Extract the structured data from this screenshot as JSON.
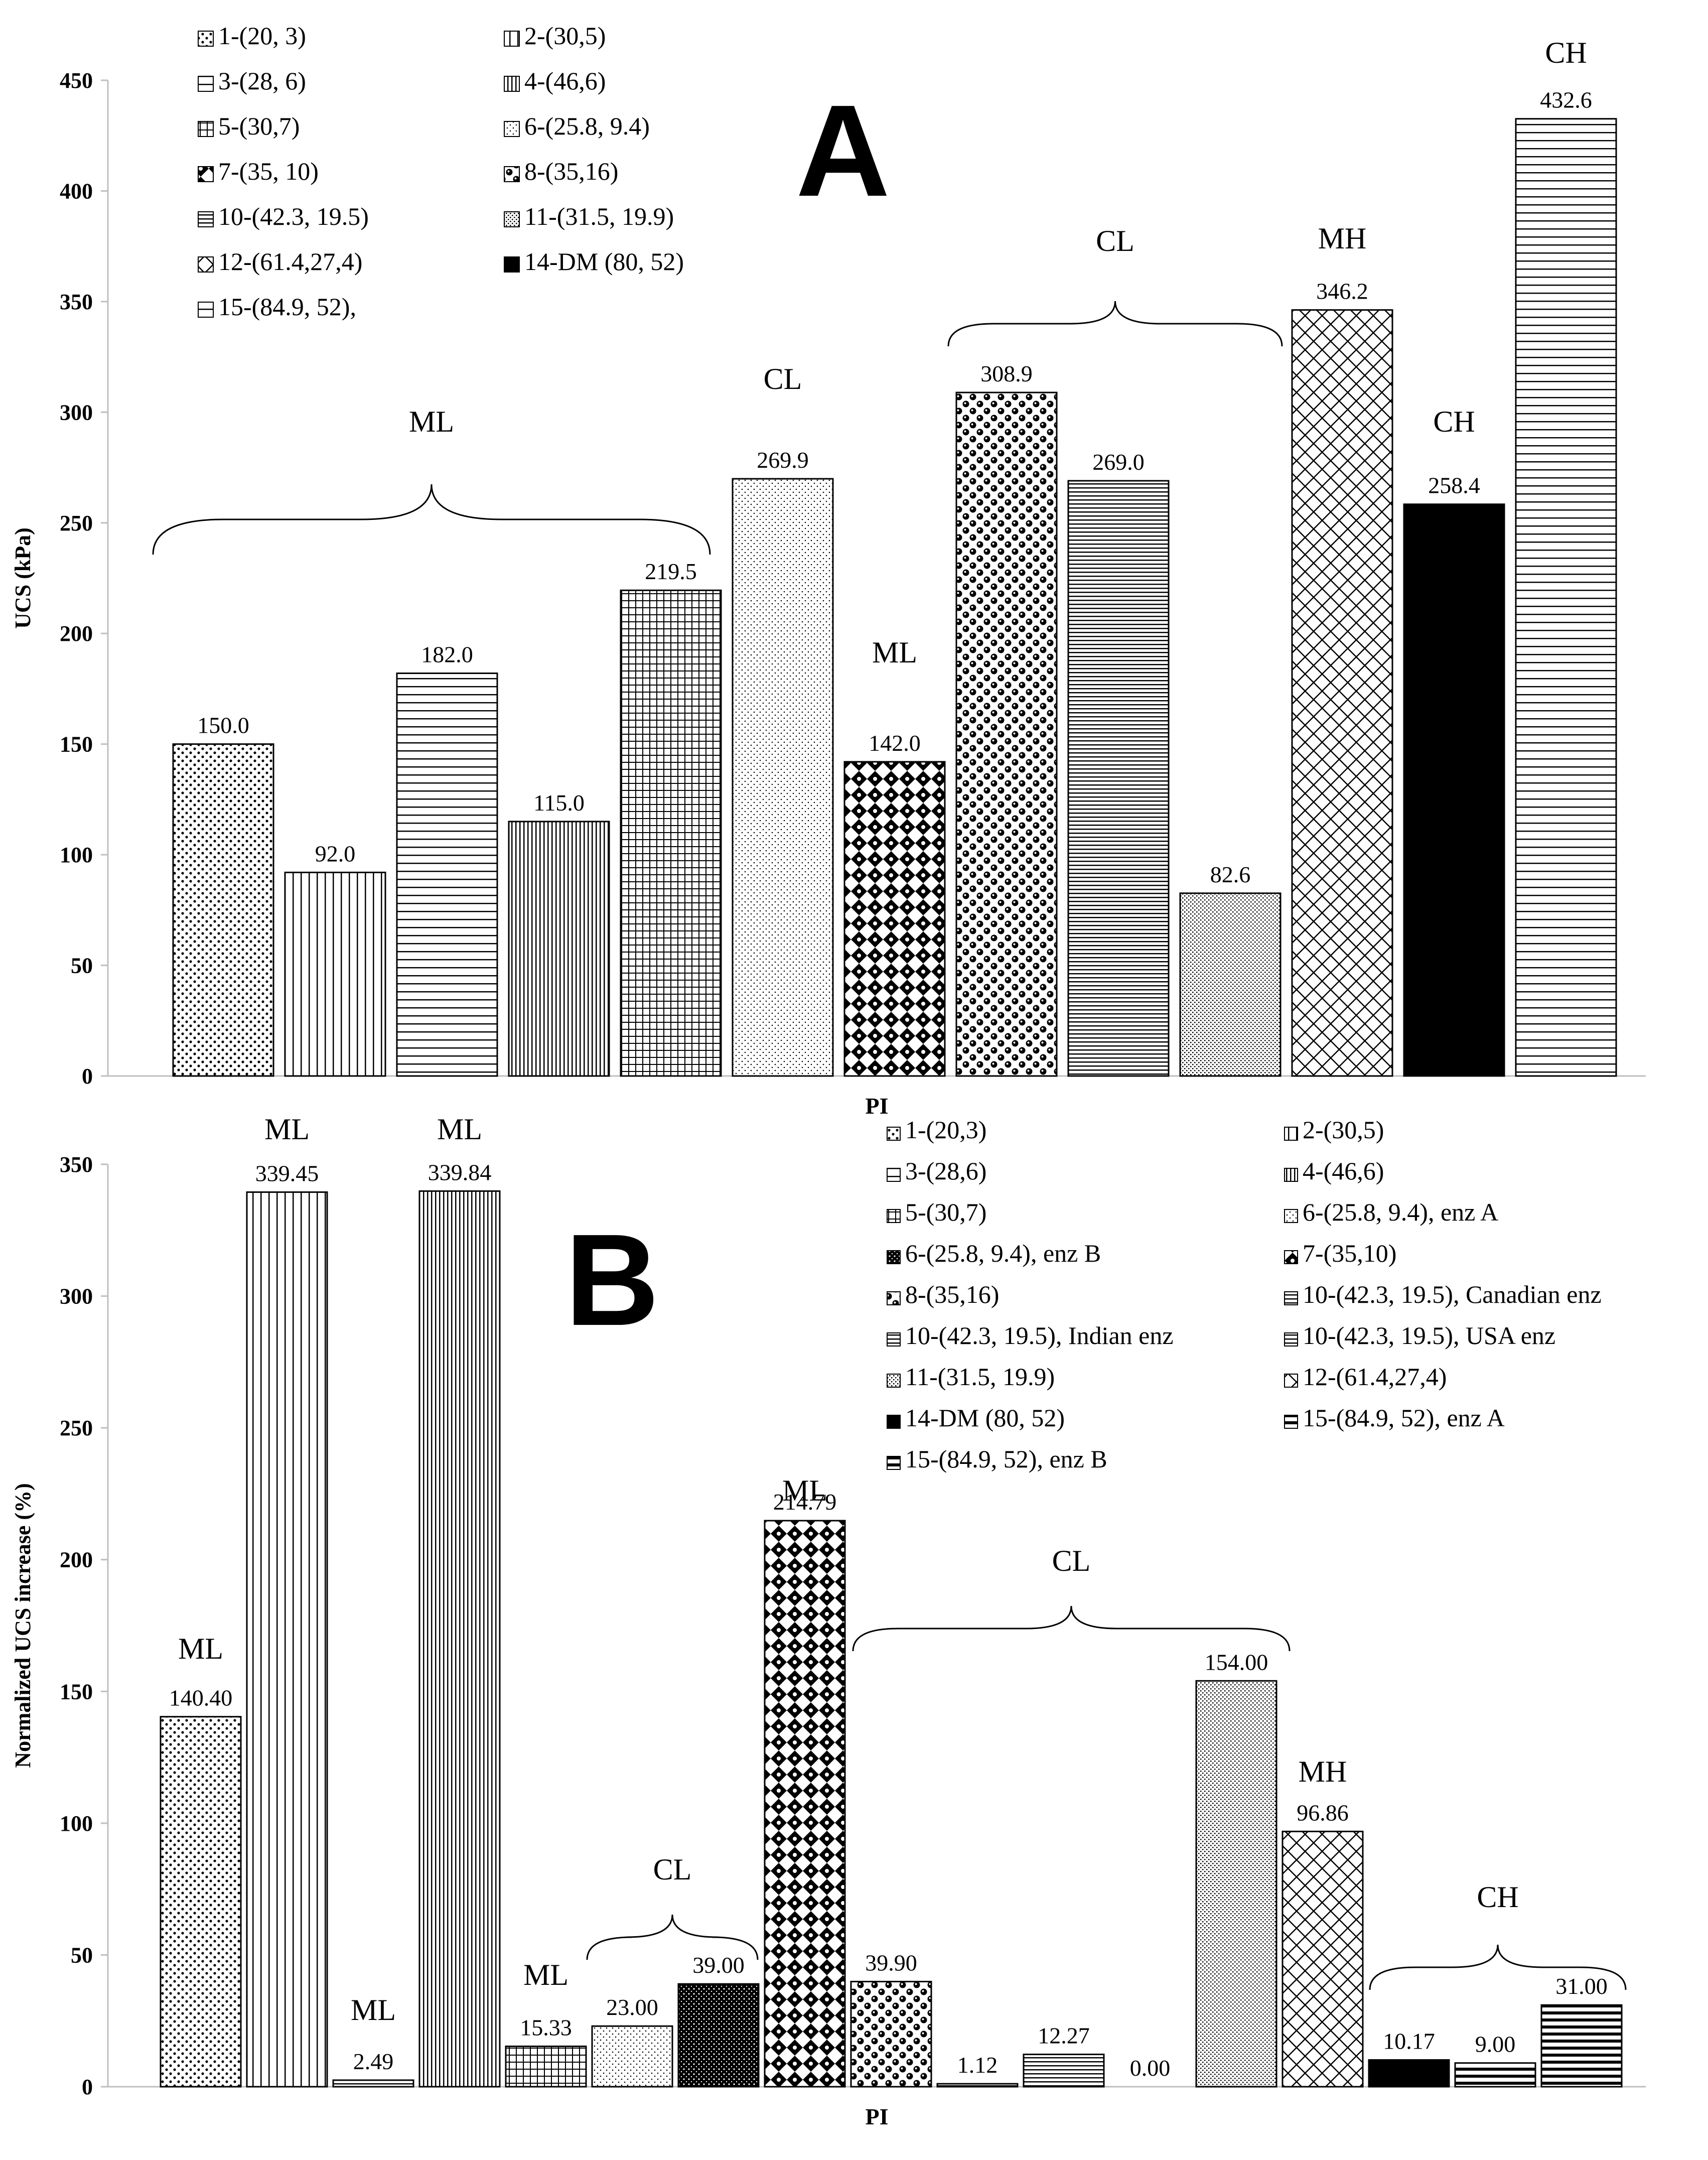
{
  "chart_data": [
    {
      "id": "A",
      "type": "bar",
      "panel_label": "A",
      "xlabel": "PI",
      "ylabel": "UCS (kPa)",
      "ylim": [
        0,
        450
      ],
      "yticks": [
        0,
        50,
        100,
        150,
        200,
        250,
        300,
        350,
        400,
        450
      ],
      "legend_position": "top-left",
      "bars": [
        {
          "legend": "1-(20, 3)",
          "value": 150.0,
          "label": "150.0",
          "pattern": "dots"
        },
        {
          "legend": "2-(30,5)",
          "value": 92.0,
          "label": "92.0",
          "pattern": "vlines"
        },
        {
          "legend": "3-(28, 6)",
          "value": 182.0,
          "label": "182.0",
          "pattern": "hlines"
        },
        {
          "legend": "4-(46,6)",
          "value": 115.0,
          "label": "115.0",
          "pattern": "vdense"
        },
        {
          "legend": "5-(30,7)",
          "value": 219.5,
          "label": "219.5",
          "pattern": "grid"
        },
        {
          "legend": "6-(25.8, 9.4)",
          "value": 269.9,
          "label": "269.9",
          "pattern": "finedots"
        },
        {
          "legend": "7-(35, 10)",
          "value": 142.0,
          "label": "142.0",
          "pattern": "diamond"
        },
        {
          "legend": "8-(35,16)",
          "value": 308.9,
          "label": "308.9",
          "pattern": "spheres"
        },
        {
          "legend": "10-(42.3, 19.5)",
          "value": 269.0,
          "label": "269.0",
          "pattern": "hdense"
        },
        {
          "legend": "11-(31.5, 19.9)",
          "value": 82.6,
          "label": "82.6",
          "pattern": "stipple"
        },
        {
          "legend": "12-(61.4,27,4)",
          "value": 346.2,
          "label": "346.2",
          "pattern": "crosshatch"
        },
        {
          "legend": "14-DM (80, 52)",
          "value": 258.4,
          "label": "258.4",
          "pattern": "solid"
        },
        {
          "legend": "15-(84.9, 52),",
          "value": 432.6,
          "label": "432.6",
          "pattern": "hlines"
        }
      ],
      "groups": [
        {
          "label": "ML",
          "from": 0,
          "to": 4,
          "brace": true
        },
        {
          "label": "CL",
          "from": 5,
          "to": 5,
          "brace": false
        },
        {
          "label": "ML",
          "from": 6,
          "to": 6,
          "brace": false
        },
        {
          "label": "CL",
          "from": 7,
          "to": 9,
          "brace": true
        },
        {
          "label": "MH",
          "from": 10,
          "to": 10,
          "brace": false
        },
        {
          "label": "CH",
          "from": 11,
          "to": 11,
          "brace": false
        },
        {
          "label": "CH",
          "from": 12,
          "to": 12,
          "brace": false
        }
      ]
    },
    {
      "id": "B",
      "type": "bar",
      "panel_label": "B",
      "xlabel": "PI",
      "ylabel": "Normalized UCS increase (%)",
      "ylim": [
        0,
        350
      ],
      "yticks": [
        0,
        50,
        100,
        150,
        200,
        250,
        300,
        350
      ],
      "legend_position": "top-right",
      "bars": [
        {
          "legend": "1-(20,3)",
          "value": 140.4,
          "label": "140.40",
          "pattern": "dots"
        },
        {
          "legend": "2-(30,5)",
          "value": 339.45,
          "label": "339.45",
          "pattern": "vlines"
        },
        {
          "legend": "3-(28,6)",
          "value": 2.49,
          "label": "2.49",
          "pattern": "hlines"
        },
        {
          "legend": "4-(46,6)",
          "value": 339.84,
          "label": "339.84",
          "pattern": "vdense"
        },
        {
          "legend": "5-(30,7)",
          "value": 15.33,
          "label": "15.33",
          "pattern": "grid"
        },
        {
          "legend": "6-(25.8, 9.4), enz A",
          "value": 23.0,
          "label": "23.00",
          "pattern": "finedots"
        },
        {
          "legend": "6-(25.8, 9.4), enz B",
          "value": 39.0,
          "label": "39.00",
          "pattern": "darkdots"
        },
        {
          "legend": "7-(35,10)",
          "value": 214.79,
          "label": "214.79",
          "pattern": "diamond"
        },
        {
          "legend": "8-(35,16)",
          "value": 39.9,
          "label": "39.90",
          "pattern": "spheres"
        },
        {
          "legend": "10-(42.3, 19.5), Canadian enz",
          "value": 1.12,
          "label": "1.12",
          "pattern": "hdense"
        },
        {
          "legend": "10-(42.3, 19.5), Indian enz",
          "value": 12.27,
          "label": "12.27",
          "pattern": "hdense"
        },
        {
          "legend": "10-(42.3, 19.5), USA enz",
          "value": 0.0,
          "label": "0.00",
          "pattern": "hdense"
        },
        {
          "legend": "11-(31.5, 19.9)",
          "value": 154.0,
          "label": "154.00",
          "pattern": "stipple"
        },
        {
          "legend": "12-(61.4,27,4)",
          "value": 96.86,
          "label": "96.86",
          "pattern": "crosshatch"
        },
        {
          "legend": "14-DM (80, 52)",
          "value": 10.17,
          "label": "10.17",
          "pattern": "solid"
        },
        {
          "legend": "15-(84.9, 52), enz A",
          "value": 9.0,
          "label": "9.00",
          "pattern": "hlinesthick"
        },
        {
          "legend": "15-(84.9, 52), enz B",
          "value": 31.0,
          "label": "31.00",
          "pattern": "hlinesthick"
        }
      ],
      "groups": [
        {
          "label": "ML",
          "from": 0,
          "to": 0,
          "brace": false
        },
        {
          "label": "ML",
          "from": 1,
          "to": 1,
          "brace": false
        },
        {
          "label": "ML",
          "from": 2,
          "to": 2,
          "brace": false
        },
        {
          "label": "ML",
          "from": 3,
          "to": 3,
          "brace": false
        },
        {
          "label": "ML",
          "from": 4,
          "to": 4,
          "brace": false
        },
        {
          "label": "CL",
          "from": 5,
          "to": 6,
          "brace": true
        },
        {
          "label": "ML",
          "from": 7,
          "to": 7,
          "brace": false
        },
        {
          "label": "CL",
          "from": 8,
          "to": 12,
          "brace": true
        },
        {
          "label": "MH",
          "from": 13,
          "to": 13,
          "brace": false
        },
        {
          "label": "CH",
          "from": 14,
          "to": 16,
          "brace": true
        }
      ]
    }
  ]
}
